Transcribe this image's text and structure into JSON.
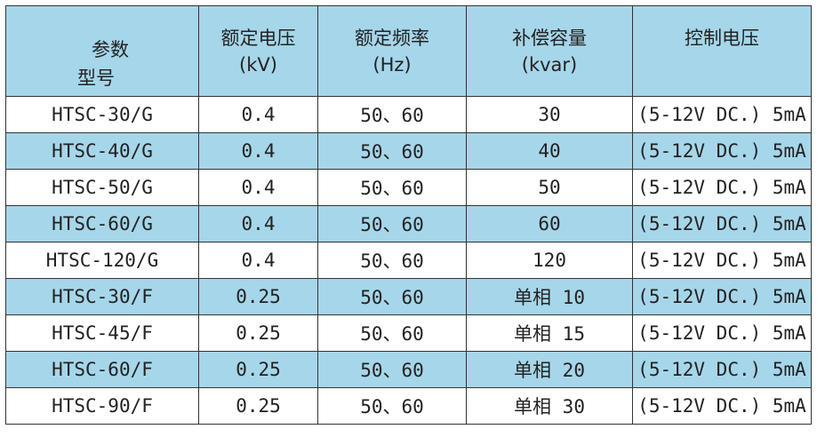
{
  "header": {
    "col0_top": "参数",
    "col0_bottom": "型号",
    "cols": [
      {
        "label": "额定电压",
        "unit": "(kV)"
      },
      {
        "label": "额定频率",
        "unit": "(Hz)"
      },
      {
        "label": "补偿容量",
        "unit": "(kvar)"
      },
      {
        "label": "控制电压",
        "unit": ""
      }
    ]
  },
  "rows": [
    [
      "HTSC-30/G",
      "0.4",
      "50、60",
      "30",
      "(5-12V DC.) 5mA"
    ],
    [
      "HTSC-40/G",
      "0.4",
      "50、60",
      "40",
      "(5-12V DC.) 5mA"
    ],
    [
      "HTSC-50/G",
      "0.4",
      "50、60",
      "50",
      "(5-12V DC.) 5mA"
    ],
    [
      "HTSC-60/G",
      "0.4",
      "50、60",
      "60",
      "(5-12V DC.) 5mA"
    ],
    [
      "HTSC-120/G",
      "0.4",
      "50、60",
      "120",
      "(5-12V DC.) 5mA"
    ],
    [
      "HTSC-30/F",
      "0.25",
      "50、60",
      "单相 10",
      "(5-12V DC.) 5mA"
    ],
    [
      "HTSC-45/F",
      "0.25",
      "50、60",
      "单相 15",
      "(5-12V DC.) 5mA"
    ],
    [
      "HTSC-60/F",
      "0.25",
      "50、60",
      "单相 20",
      "(5-12V DC.) 5mA"
    ],
    [
      "HTSC-90/F",
      "0.25",
      "50、60",
      "单相 30",
      "(5-12V DC.) 5mA"
    ]
  ],
  "colors": {
    "header_bg": "#a6d6ea",
    "alt_row_bg": "#a6d6ea",
    "border": "#333333"
  }
}
